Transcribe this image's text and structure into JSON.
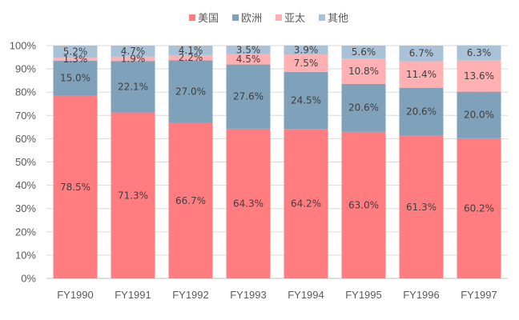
{
  "chart_data": {
    "type": "bar",
    "stacked": true,
    "percent_stacked": true,
    "categories": [
      "FY1990",
      "FY1991",
      "FY1992",
      "FY1993",
      "FY1994",
      "FY1995",
      "FY1996",
      "FY1997"
    ],
    "series": [
      {
        "name": "美国",
        "color": "#ff7c80",
        "values": [
          78.5,
          71.3,
          66.7,
          64.3,
          64.2,
          63.0,
          61.3,
          60.2
        ],
        "labels": [
          "78.5%",
          "71.3%",
          "66.7%",
          "64.3%",
          "64.2%",
          "63.0%",
          "61.3%",
          "60.2%"
        ]
      },
      {
        "name": "欧洲",
        "color": "#7fa1b9",
        "values": [
          15.0,
          22.1,
          27.0,
          27.6,
          24.5,
          20.6,
          20.6,
          20.0
        ],
        "labels": [
          "15.0%",
          "22.1%",
          "27.0%",
          "27.6%",
          "24.5%",
          "20.6%",
          "20.6%",
          "20.0%"
        ]
      },
      {
        "name": "亚太",
        "color": "#ffb0b3",
        "values": [
          1.3,
          1.9,
          2.2,
          4.5,
          7.5,
          10.8,
          11.4,
          13.6
        ],
        "labels": [
          "1.3%",
          "1.9%",
          "2.2%",
          "4.5%",
          "7.5%",
          "10.8%",
          "11.4%",
          "13.6%"
        ]
      },
      {
        "name": "其他",
        "color": "#a9c2d8",
        "values": [
          5.2,
          4.7,
          4.1,
          3.5,
          3.9,
          5.6,
          6.7,
          6.3
        ],
        "labels": [
          "5.2%",
          "4.7%",
          "4.1%",
          "3.5%",
          "3.9%",
          "5.6%",
          "6.7%",
          "6.3%"
        ]
      }
    ],
    "ylim": [
      0,
      100
    ],
    "yticks": [
      "0%",
      "10%",
      "20%",
      "30%",
      "40%",
      "50%",
      "60%",
      "70%",
      "80%",
      "90%",
      "100%"
    ],
    "grid": true,
    "legend_position": "top"
  }
}
